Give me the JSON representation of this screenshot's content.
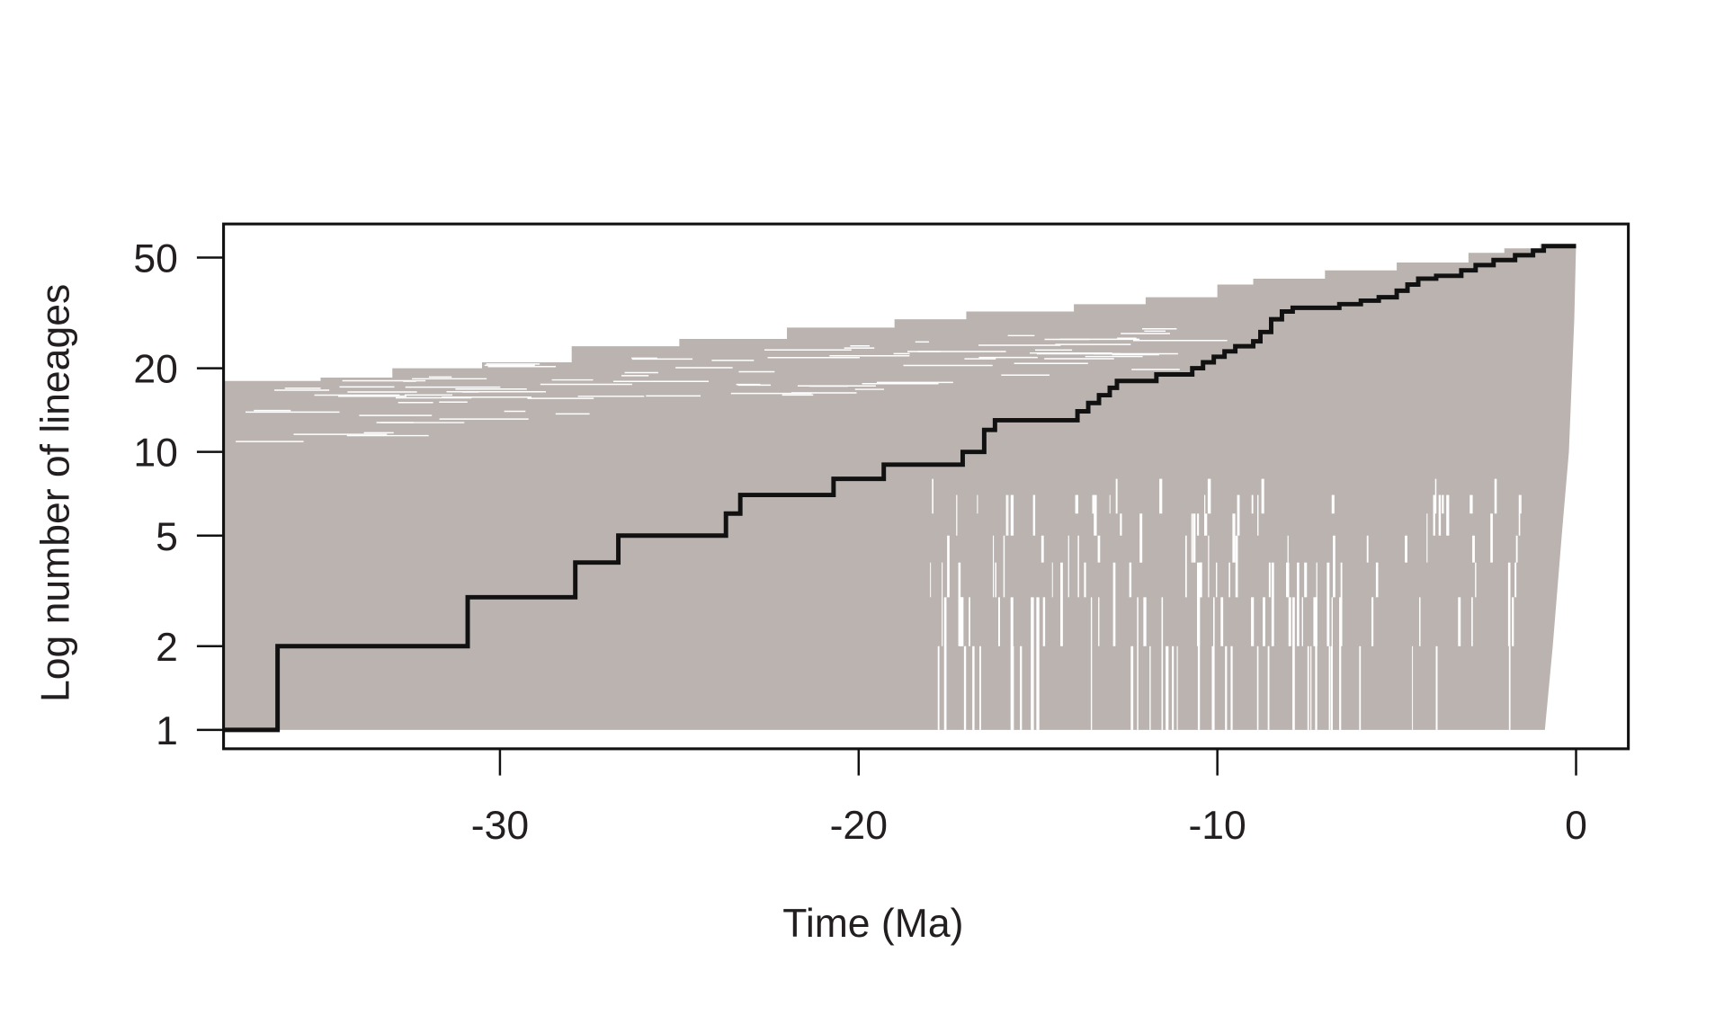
{
  "chart_data": {
    "type": "line",
    "title": "",
    "xlabel": "Time (Ma)",
    "ylabel": "Log number of lineages",
    "xlim": [
      -37.7,
      1.4
    ],
    "ylim": [
      0.93,
      62
    ],
    "y_scale": "log",
    "grid": false,
    "x_ticks": [
      -30,
      -20,
      -10,
      0
    ],
    "x_tick_labels": [
      "-30",
      "-20",
      "-10",
      "0"
    ],
    "y_ticks": [
      1,
      2,
      5,
      10,
      20,
      50
    ],
    "y_tick_labels": [
      "1",
      "2",
      "5",
      "10",
      "20",
      "50"
    ],
    "colors": {
      "observed": "#111111",
      "simulated": "#bab3b0"
    },
    "series": [
      {
        "kind": "step",
        "color": "#111111",
        "points": [
          [
            -37.7,
            1
          ],
          [
            -36.2,
            2
          ],
          [
            -30.9,
            3
          ],
          [
            -27.9,
            4
          ],
          [
            -26.7,
            5
          ],
          [
            -23.7,
            6
          ],
          [
            -23.3,
            7
          ],
          [
            -20.7,
            8
          ],
          [
            -19.3,
            9
          ],
          [
            -17.1,
            10
          ],
          [
            -16.5,
            12
          ],
          [
            -16.2,
            13
          ],
          [
            -13.9,
            14
          ],
          [
            -13.6,
            15
          ],
          [
            -13.3,
            16
          ],
          [
            -13.0,
            17
          ],
          [
            -12.8,
            18
          ],
          [
            -11.7,
            19
          ],
          [
            -10.7,
            20
          ],
          [
            -10.4,
            21
          ],
          [
            -10.1,
            22
          ],
          [
            -9.8,
            23
          ],
          [
            -9.5,
            24
          ],
          [
            -9.0,
            25
          ],
          [
            -8.8,
            27
          ],
          [
            -8.5,
            30
          ],
          [
            -8.2,
            32
          ],
          [
            -7.9,
            33
          ],
          [
            -6.6,
            34
          ],
          [
            -6.0,
            35
          ],
          [
            -5.5,
            36
          ],
          [
            -5.0,
            38
          ],
          [
            -4.7,
            40
          ],
          [
            -4.4,
            42
          ],
          [
            -3.9,
            43
          ],
          [
            -3.2,
            45
          ],
          [
            -2.8,
            47
          ],
          [
            -2.3,
            49
          ],
          [
            -1.7,
            51
          ],
          [
            -1.2,
            53
          ],
          [
            -0.9,
            55
          ],
          [
            0,
            55
          ]
        ]
      },
      {
        "kind": "envelope",
        "color": "#bab3b0",
        "upper": [
          [
            -37.7,
            18
          ],
          [
            -35,
            18.5
          ],
          [
            -33,
            20
          ],
          [
            -30.5,
            21
          ],
          [
            -28,
            24
          ],
          [
            -25,
            25.5
          ],
          [
            -22,
            28
          ],
          [
            -19,
            30
          ],
          [
            -17,
            32
          ],
          [
            -14,
            34
          ],
          [
            -12,
            36
          ],
          [
            -10,
            40
          ],
          [
            -9,
            42
          ],
          [
            -7,
            45
          ],
          [
            -5,
            48
          ],
          [
            -3,
            52
          ],
          [
            -2,
            54
          ],
          [
            -1,
            56
          ],
          [
            0,
            56
          ]
        ],
        "right_edge": [
          [
            0,
            56
          ],
          [
            -0.05,
            30
          ],
          [
            -0.2,
            10
          ],
          [
            -0.4,
            5
          ],
          [
            -0.65,
            2
          ],
          [
            -0.87,
            1
          ]
        ]
      }
    ]
  }
}
